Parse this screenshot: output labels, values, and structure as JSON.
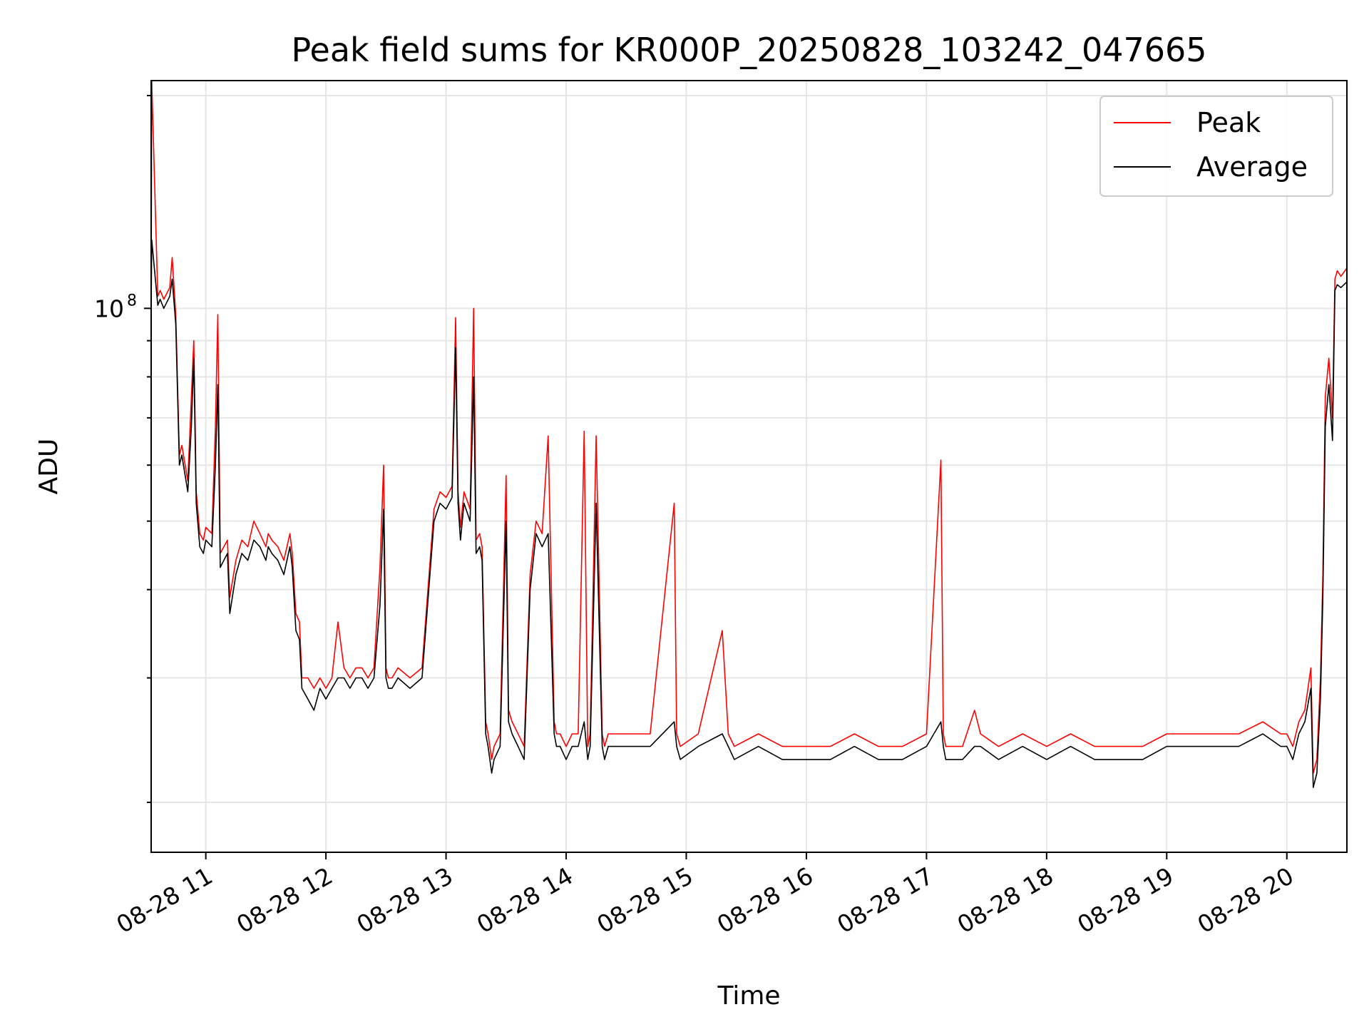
{
  "chart_data": {
    "type": "line",
    "title": "Peak field sums for KR000P_20250828_103242_047665",
    "xlabel": "Time",
    "ylabel": "ADU",
    "x_ticks": [
      "08-28 11",
      "08-28 12",
      "08-28 13",
      "08-28 14",
      "08-28 15",
      "08-28 16",
      "08-28 17",
      "08-28 18",
      "08-28 19",
      "08-28 20"
    ],
    "x_tick_hours": [
      11,
      12,
      13,
      14,
      15,
      16,
      17,
      18,
      19,
      20
    ],
    "xlim": [
      "2025-08-28 10:32:42",
      "2025-08-28 20:30:00"
    ],
    "y_scale": "log",
    "y_major_tick": {
      "value": 100000000,
      "base": "10",
      "exponent": "8"
    },
    "ylim": [
      17000000,
      210000000
    ],
    "grid": true,
    "legend_position": "top-right",
    "series": [
      {
        "name": "Peak",
        "color": "#ff0000",
        "x_hours": [
          10.545,
          10.55,
          10.6,
          10.62,
          10.65,
          10.7,
          10.72,
          10.75,
          10.78,
          10.8,
          10.85,
          10.88,
          10.9,
          10.92,
          10.95,
          10.98,
          11.0,
          11.05,
          11.08,
          11.1,
          11.12,
          11.15,
          11.18,
          11.2,
          11.25,
          11.3,
          11.35,
          11.4,
          11.45,
          11.5,
          11.52,
          11.55,
          11.6,
          11.65,
          11.7,
          11.72,
          11.75,
          11.78,
          11.8,
          11.85,
          11.9,
          11.95,
          12.0,
          12.05,
          12.1,
          12.15,
          12.2,
          12.25,
          12.3,
          12.35,
          12.4,
          12.45,
          12.48,
          12.5,
          12.52,
          12.55,
          12.6,
          12.7,
          12.8,
          12.9,
          12.95,
          13.0,
          13.05,
          13.08,
          13.1,
          13.12,
          13.15,
          13.2,
          13.23,
          13.25,
          13.28,
          13.3,
          13.33,
          13.35,
          13.38,
          13.4,
          13.45,
          13.5,
          13.52,
          13.55,
          13.6,
          13.65,
          13.7,
          13.75,
          13.8,
          13.85,
          13.9,
          13.92,
          13.95,
          14.0,
          14.05,
          14.1,
          14.15,
          14.18,
          14.2,
          14.25,
          14.3,
          14.32,
          14.35,
          14.5,
          14.7,
          14.9,
          14.92,
          14.95,
          15.1,
          15.3,
          15.35,
          15.4,
          15.6,
          15.8,
          16.0,
          16.2,
          16.4,
          16.6,
          16.8,
          17.0,
          17.12,
          17.14,
          17.16,
          17.3,
          17.4,
          17.45,
          17.6,
          17.8,
          18.0,
          18.2,
          18.4,
          18.6,
          18.8,
          19.0,
          19.2,
          19.4,
          19.6,
          19.8,
          19.95,
          20.0,
          20.05,
          20.1,
          20.15,
          20.2,
          20.22,
          20.25,
          20.28,
          20.3,
          20.32,
          20.35,
          20.38,
          20.4,
          20.42,
          20.45,
          20.5
        ],
        "values": [
          102000000,
          210000000,
          104000000,
          106000000,
          103000000,
          107000000,
          118000000,
          98000000,
          62000000,
          64000000,
          57000000,
          75000000,
          90000000,
          55000000,
          48000000,
          47000000,
          49000000,
          48000000,
          68000000,
          98000000,
          45000000,
          46000000,
          47000000,
          39000000,
          44000000,
          47000000,
          46000000,
          50000000,
          48000000,
          46000000,
          48000000,
          47000000,
          46000000,
          44000000,
          48000000,
          45000000,
          37000000,
          36000000,
          30000000,
          30000000,
          29000000,
          30000000,
          29000000,
          30000000,
          36000000,
          31000000,
          30000000,
          31000000,
          31000000,
          30000000,
          31000000,
          43000000,
          60000000,
          31000000,
          30000000,
          30000000,
          31000000,
          30000000,
          31000000,
          52000000,
          55000000,
          54000000,
          56000000,
          97000000,
          55000000,
          49000000,
          55000000,
          52000000,
          100000000,
          47000000,
          48000000,
          46000000,
          26000000,
          25000000,
          23000000,
          24000000,
          25000000,
          58000000,
          27000000,
          26000000,
          25000000,
          24000000,
          42000000,
          50000000,
          48000000,
          66000000,
          26000000,
          25000000,
          25000000,
          24000000,
          25000000,
          25000000,
          67000000,
          24000000,
          25000000,
          66000000,
          25000000,
          24000000,
          25000000,
          25000000,
          25000000,
          53000000,
          25000000,
          24000000,
          25000000,
          35000000,
          25000000,
          24000000,
          25000000,
          24000000,
          24000000,
          24000000,
          25000000,
          24000000,
          24000000,
          25000000,
          61000000,
          25000000,
          24000000,
          24000000,
          27000000,
          25000000,
          24000000,
          25000000,
          24000000,
          25000000,
          24000000,
          24000000,
          24000000,
          25000000,
          25000000,
          25000000,
          25000000,
          26000000,
          25000000,
          25000000,
          24000000,
          26000000,
          27000000,
          31000000,
          22000000,
          23000000,
          30000000,
          42000000,
          75000000,
          85000000,
          70000000,
          110000000,
          113000000,
          111000000,
          114000000
        ]
      },
      {
        "name": "Average",
        "color": "#000000",
        "x_hours": [
          10.545,
          10.55,
          10.6,
          10.62,
          10.65,
          10.7,
          10.72,
          10.75,
          10.78,
          10.8,
          10.85,
          10.88,
          10.9,
          10.92,
          10.95,
          10.98,
          11.0,
          11.05,
          11.08,
          11.1,
          11.12,
          11.15,
          11.18,
          11.2,
          11.25,
          11.3,
          11.35,
          11.4,
          11.45,
          11.5,
          11.52,
          11.55,
          11.6,
          11.65,
          11.7,
          11.72,
          11.75,
          11.78,
          11.8,
          11.85,
          11.9,
          11.95,
          12.0,
          12.05,
          12.1,
          12.15,
          12.2,
          12.25,
          12.3,
          12.35,
          12.4,
          12.45,
          12.48,
          12.5,
          12.52,
          12.55,
          12.6,
          12.7,
          12.8,
          12.9,
          12.95,
          13.0,
          13.05,
          13.08,
          13.1,
          13.12,
          13.15,
          13.2,
          13.23,
          13.25,
          13.28,
          13.3,
          13.33,
          13.35,
          13.38,
          13.4,
          13.45,
          13.5,
          13.52,
          13.55,
          13.6,
          13.65,
          13.7,
          13.75,
          13.8,
          13.85,
          13.9,
          13.92,
          13.95,
          14.0,
          14.05,
          14.1,
          14.15,
          14.18,
          14.2,
          14.25,
          14.3,
          14.32,
          14.35,
          14.5,
          14.7,
          14.9,
          14.92,
          14.95,
          15.1,
          15.3,
          15.35,
          15.4,
          15.6,
          15.8,
          16.0,
          16.2,
          16.4,
          16.6,
          16.8,
          17.0,
          17.12,
          17.14,
          17.16,
          17.3,
          17.4,
          17.45,
          17.6,
          17.8,
          18.0,
          18.2,
          18.4,
          18.6,
          18.8,
          19.0,
          19.2,
          19.4,
          19.6,
          19.8,
          19.95,
          20.0,
          20.05,
          20.1,
          20.15,
          20.2,
          20.22,
          20.25,
          20.28,
          20.3,
          20.32,
          20.35,
          20.38,
          20.4,
          20.42,
          20.45,
          20.5
        ],
        "values": [
          100000000,
          125000000,
          101000000,
          103000000,
          100000000,
          104000000,
          110000000,
          95000000,
          60000000,
          62000000,
          55000000,
          68000000,
          85000000,
          53000000,
          46000000,
          45000000,
          47000000,
          46000000,
          60000000,
          78000000,
          43000000,
          44000000,
          45000000,
          37000000,
          42000000,
          45000000,
          44000000,
          47000000,
          46000000,
          44000000,
          46000000,
          45000000,
          44000000,
          42000000,
          46000000,
          43000000,
          35000000,
          34000000,
          29000000,
          28000000,
          27000000,
          29000000,
          28000000,
          29000000,
          30000000,
          30000000,
          29000000,
          30000000,
          30000000,
          29000000,
          30000000,
          38000000,
          52000000,
          30000000,
          29000000,
          29000000,
          30000000,
          29000000,
          30000000,
          50000000,
          53000000,
          52000000,
          54000000,
          88000000,
          53000000,
          47000000,
          53000000,
          50000000,
          80000000,
          45000000,
          46000000,
          44000000,
          25000000,
          24000000,
          22000000,
          23000000,
          24000000,
          50000000,
          26000000,
          25000000,
          24000000,
          23000000,
          40000000,
          48000000,
          46000000,
          48000000,
          25000000,
          24000000,
          24000000,
          23000000,
          24000000,
          24000000,
          26000000,
          23000000,
          24000000,
          53000000,
          24000000,
          23000000,
          24000000,
          24000000,
          24000000,
          26000000,
          24000000,
          23000000,
          24000000,
          25000000,
          24000000,
          23000000,
          24000000,
          23000000,
          23000000,
          23000000,
          24000000,
          23000000,
          23000000,
          24000000,
          26000000,
          24000000,
          23000000,
          23000000,
          24000000,
          24000000,
          23000000,
          24000000,
          23000000,
          24000000,
          23000000,
          23000000,
          23000000,
          24000000,
          24000000,
          24000000,
          24000000,
          25000000,
          24000000,
          24000000,
          23000000,
          25000000,
          26000000,
          29000000,
          21000000,
          22000000,
          28000000,
          39000000,
          68000000,
          78000000,
          65000000,
          106000000,
          108000000,
          107000000,
          109000000
        ]
      }
    ]
  }
}
